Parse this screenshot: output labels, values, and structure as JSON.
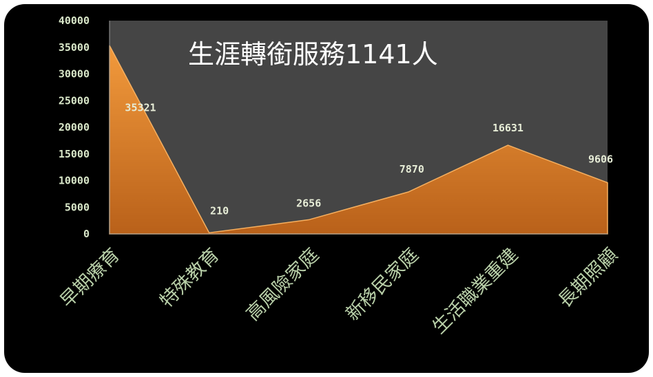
{
  "chart_data": {
    "type": "area",
    "title": "生涯轉銜服務1141人",
    "categories": [
      "早期療育",
      "特殊教育",
      "高風險家庭",
      "新移民家庭",
      "生活職業重建",
      "長期照顧"
    ],
    "values": [
      35321,
      210,
      2656,
      7870,
      16631,
      9606
    ],
    "data_labels": [
      "35321",
      "210",
      "2656",
      "7870",
      "16631",
      "9606"
    ],
    "ylim": [
      0,
      40000
    ],
    "yticks": [
      0,
      5000,
      10000,
      15000,
      20000,
      25000,
      30000,
      35000,
      40000
    ],
    "ytick_labels": [
      "0",
      "5000",
      "10000",
      "15000",
      "20000",
      "25000",
      "30000",
      "35000",
      "40000"
    ],
    "grid": false,
    "colors": {
      "plot_background": "#454545",
      "area_fill": "#e68a2e",
      "area_edge": "#f6b060",
      "frame": "#000000"
    }
  }
}
